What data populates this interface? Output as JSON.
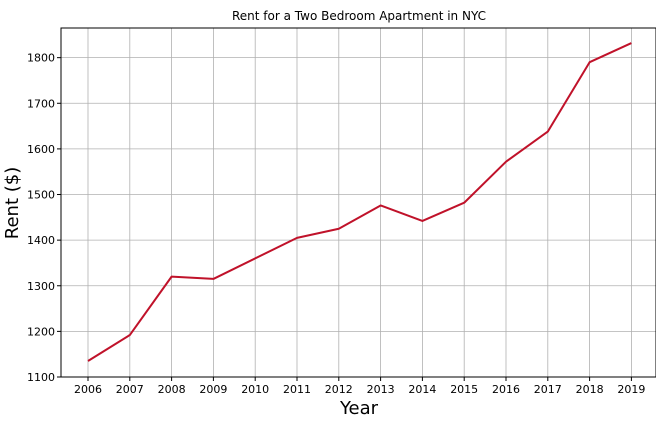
{
  "chart_data": {
    "type": "line",
    "title": "Rent for a Two Bedroom Apartment in NYC",
    "xlabel": "Year",
    "ylabel": "Rent ($)",
    "x": [
      "2006",
      "2007",
      "2008",
      "2009",
      "2010",
      "2011",
      "2012",
      "2013",
      "2014",
      "2015",
      "2016",
      "2017",
      "2018",
      "2019"
    ],
    "series": [
      {
        "values": [
          1135,
          1192,
          1320,
          1315,
          1360,
          1405,
          1425,
          1476,
          1442,
          1482,
          1572,
          1638,
          1790,
          1832
        ],
        "color": "#c0122a"
      }
    ],
    "yticks": [
      1100,
      1200,
      1300,
      1400,
      1500,
      1600,
      1700,
      1800
    ],
    "ylim": [
      1100,
      1865
    ],
    "grid": true
  }
}
